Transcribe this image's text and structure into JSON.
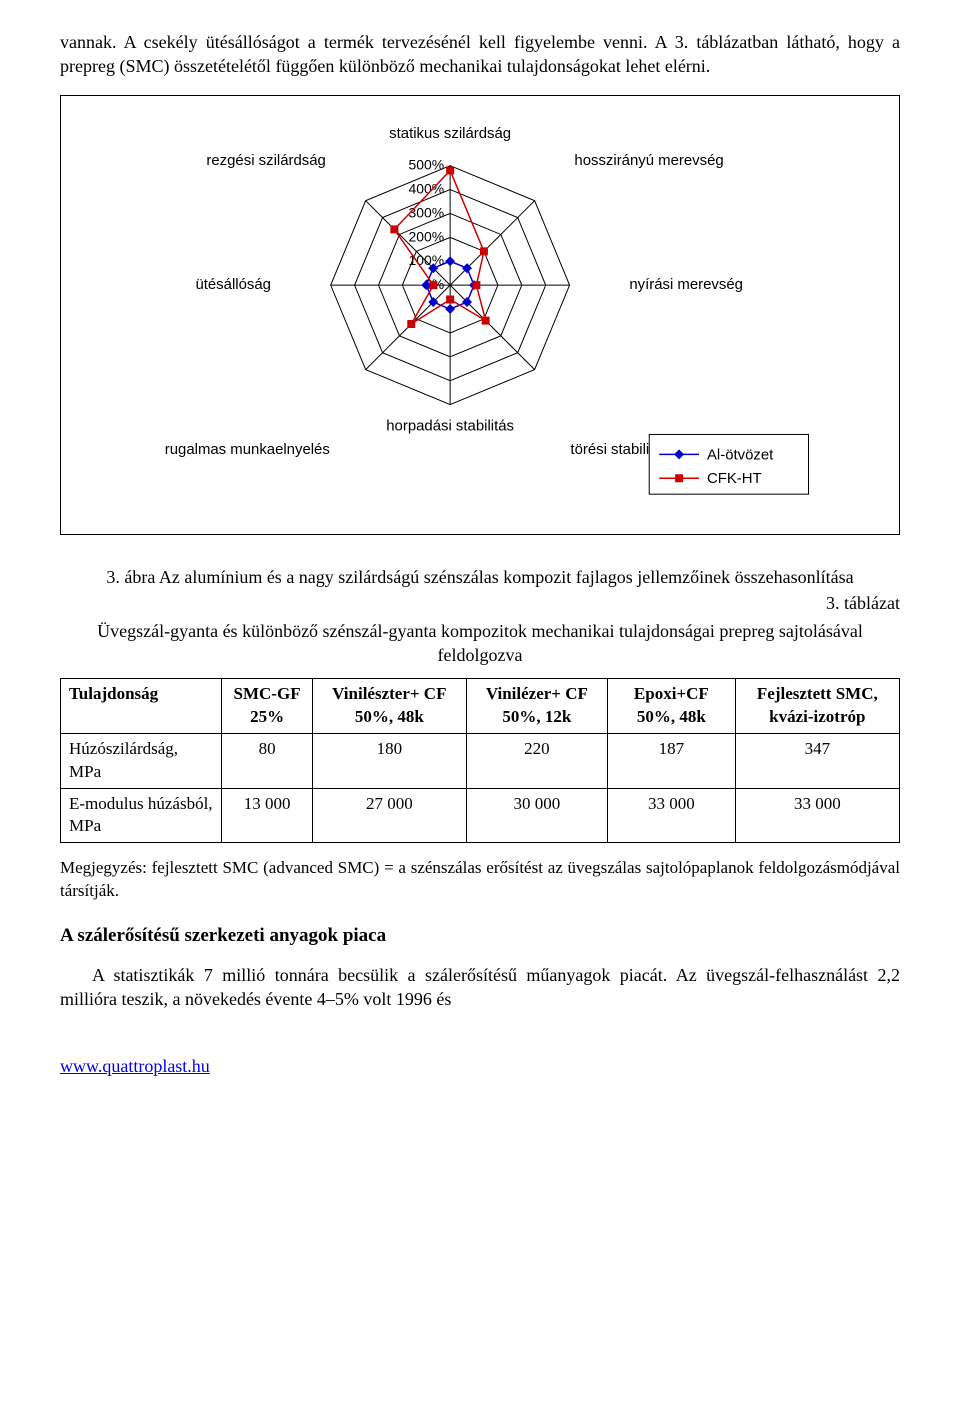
{
  "intro_para": "vannak. A csekély ütésállóságot a termék tervezésénél kell figyelembe venni. A 3. táblázatban látható, hogy a prepreg (SMC) összetételétől függően különböző mechanikai tulajdonságokat lehet elérni.",
  "chart": {
    "type": "radar",
    "background_color": "#ffffff",
    "axes": [
      "statikus szilárdság",
      "hosszirányú merevség",
      "nyírási merevség",
      "törési stabilitás",
      "horpadási stabilitás",
      "rugalmas munkaelnyelés",
      "ütésállóság",
      "rezgési szilárdság"
    ],
    "ticks": [
      "0%",
      "100%",
      "200%",
      "300%",
      "400%",
      "500%"
    ],
    "scale_max": 500,
    "tick_step": 100,
    "series": [
      {
        "name": "Al-ötvözet",
        "color": "#0000cc",
        "marker": "diamond",
        "marker_size": 8,
        "line_width": 1.5,
        "values": [
          100,
          100,
          100,
          100,
          100,
          100,
          100,
          100
        ]
      },
      {
        "name": "CFK-HT",
        "color": "#cc0000",
        "marker": "square",
        "marker_size": 8,
        "line_width": 1.5,
        "values": [
          480,
          200,
          110,
          210,
          60,
          230,
          70,
          330
        ]
      }
    ],
    "legend": {
      "position": "bottom-right"
    }
  },
  "figure_caption": "3. ábra Az alumínium és a nagy szilárdságú szénszálas kompozit fajlagos jellemzőinek összehasonlítása",
  "table_number": "3. táblázat",
  "table_title": "Üvegszál-gyanta és különböző szénszál-gyanta kompozitok mechanikai tulajdonságai prepreg sajtolásával feldolgozva",
  "table": {
    "columns": [
      "Tulajdonság",
      "SMC-GF 25%",
      "Vinilészter+ CF 50%, 48k",
      "Vinilézer+ CF 50%, 12k",
      "Epoxi+CF 50%, 48k",
      "Fejlesztett SMC, kvázi-izotróp"
    ],
    "rows": [
      {
        "label": "Húzószilárdság, MPa",
        "values": [
          "80",
          "180",
          "220",
          "187",
          "347"
        ]
      },
      {
        "label": "E-modulus húzásból, MPa",
        "values": [
          "13 000",
          "27 000",
          "30 000",
          "33 000",
          "33 000"
        ]
      }
    ]
  },
  "note_text": "Megjegyzés: fejlesztett SMC (advanced SMC) = a szénszálas erősítést az üvegszálas sajtolópaplanok feldolgozásmódjával társítják.",
  "section_heading": "A szálerősítésű szerkezeti anyagok piaca",
  "body_para": "A statisztikák 7 millió tonnára becsülik a szálerősítésű műanyagok piacát. Az üvegszál-felhasználást 2,2 millióra teszik, a növekedés évente 4–5% volt 1996 és",
  "footer_link": "www.quattroplast.hu"
}
